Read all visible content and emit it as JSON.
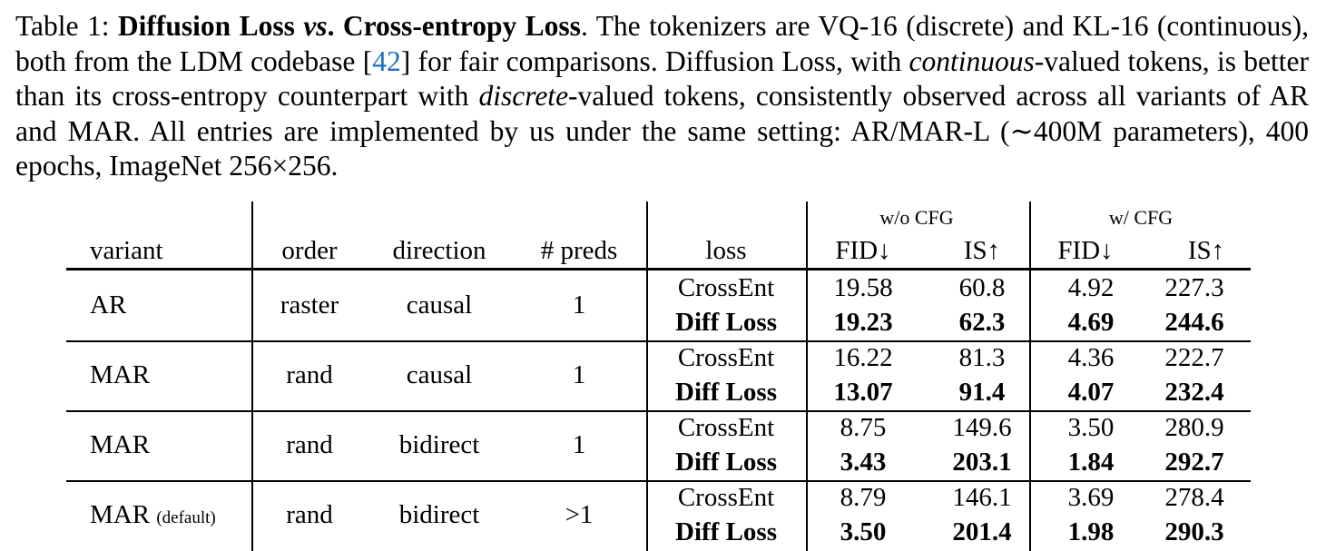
{
  "caption": {
    "label": "Table 1:",
    "title_bold_1": "Diffusion Loss",
    "title_vs": "vs",
    "title_bold_2": ". Cross-entropy Loss",
    "text_1": ". The tokenizers are VQ-16 (discrete) and KL-16 (continuous), both from the LDM codebase [",
    "cite": "42",
    "text_2": "] for fair comparisons. Diffusion Loss, with ",
    "italic_1": "continuous",
    "text_3": "-valued tokens, is better than its cross-entropy counterpart with ",
    "italic_2": "discrete",
    "text_4": "-valued tokens, consistently observed across all variants of AR and MAR. All entries are implemented by us under the same setting: AR/MAR-L (∼400M parameters), 400 epochs, ImageNet 256×256."
  },
  "table": {
    "group_headers": {
      "wo_cfg": "w/o CFG",
      "w_cfg": "w/ CFG"
    },
    "headers": {
      "variant": "variant",
      "order": "order",
      "direction": "direction",
      "preds": "# preds",
      "loss": "loss",
      "fid1": "FID↓",
      "is1": "IS↑",
      "fid2": "FID↓",
      "is2": "IS↑"
    },
    "rows": [
      {
        "variant": "AR",
        "variant_sub": "",
        "order": "raster",
        "direction": "causal",
        "preds": "1",
        "ce": {
          "loss": "CrossEnt",
          "fid1": "19.58",
          "is1": "60.8",
          "fid2": "4.92",
          "is2": "227.3"
        },
        "dl": {
          "loss": "Diff Loss",
          "fid1": "19.23",
          "is1": "62.3",
          "fid2": "4.69",
          "is2": "244.6"
        }
      },
      {
        "variant": "MAR",
        "variant_sub": "",
        "order": "rand",
        "direction": "causal",
        "preds": "1",
        "ce": {
          "loss": "CrossEnt",
          "fid1": "16.22",
          "is1": "81.3",
          "fid2": "4.36",
          "is2": "222.7"
        },
        "dl": {
          "loss": "Diff Loss",
          "fid1": "13.07",
          "is1": "91.4",
          "fid2": "4.07",
          "is2": "232.4"
        }
      },
      {
        "variant": "MAR",
        "variant_sub": "",
        "order": "rand",
        "direction": "bidirect",
        "preds": "1",
        "ce": {
          "loss": "CrossEnt",
          "fid1": "8.75",
          "is1": "149.6",
          "fid2": "3.50",
          "is2": "280.9"
        },
        "dl": {
          "loss": "Diff Loss",
          "fid1": "3.43",
          "is1": "203.1",
          "fid2": "1.84",
          "is2": "292.7"
        }
      },
      {
        "variant": "MAR",
        "variant_sub": "(default)",
        "order": "rand",
        "direction": "bidirect",
        "preds": ">1",
        "ce": {
          "loss": "CrossEnt",
          "fid1": "8.79",
          "is1": "146.1",
          "fid2": "3.69",
          "is2": "278.4"
        },
        "dl": {
          "loss": "Diff Loss",
          "fid1": "3.50",
          "is1": "201.4",
          "fid2": "1.98",
          "is2": "290.3"
        }
      }
    ]
  }
}
